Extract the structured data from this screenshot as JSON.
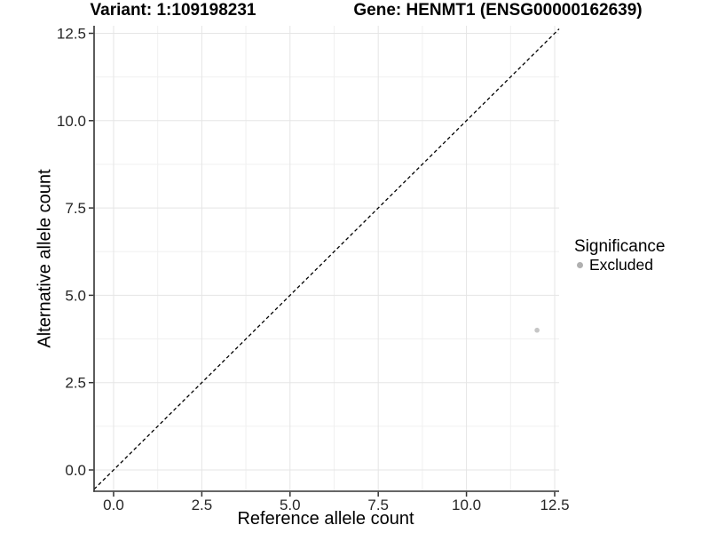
{
  "chart_data": {
    "type": "scatter",
    "title_left": "Variant: 1:109198231",
    "title_right": "Gene: HENMT1 (ENSG00000162639)",
    "xlabel": "Reference allele count",
    "ylabel": "Alternative allele count",
    "xlim": [
      -0.553,
      12.626
    ],
    "ylim": [
      -0.61,
      12.716
    ],
    "xticks": {
      "values": [
        0,
        2.5,
        5,
        7.5,
        10,
        12.5
      ],
      "labels": [
        "0.0",
        "2.5",
        "5.0",
        "7.5",
        "10.0",
        "12.5"
      ]
    },
    "yticks": {
      "values": [
        0,
        2.5,
        5,
        7.5,
        10,
        12.5
      ],
      "labels": [
        "0.0",
        "2.5",
        "5.0",
        "7.5",
        "10.0",
        "12.5"
      ]
    },
    "x_minor": [
      1.25,
      3.75,
      6.25,
      8.75,
      11.25
    ],
    "y_minor": [
      1.25,
      3.75,
      6.25,
      8.75,
      11.25
    ],
    "grid": true,
    "points": [
      {
        "x": 12,
        "y": 4,
        "significance": "Excluded",
        "color": "#c6c6c6",
        "radius": 2.8
      }
    ],
    "identity_line": {
      "slope": 1,
      "intercept": 0,
      "style": "dashed",
      "color": "#000000"
    },
    "legend": {
      "position": "right",
      "title": "Significance",
      "items": [
        {
          "label": "Excluded",
          "color": "#b0b0b0"
        }
      ]
    },
    "style": {
      "grid_major": "#e5e5e5",
      "grid_minor": "#f0f0f0",
      "axis_line": "#333333",
      "tick_color": "#333333",
      "tick_label_color": "#262626",
      "title_color": "#000000"
    }
  }
}
